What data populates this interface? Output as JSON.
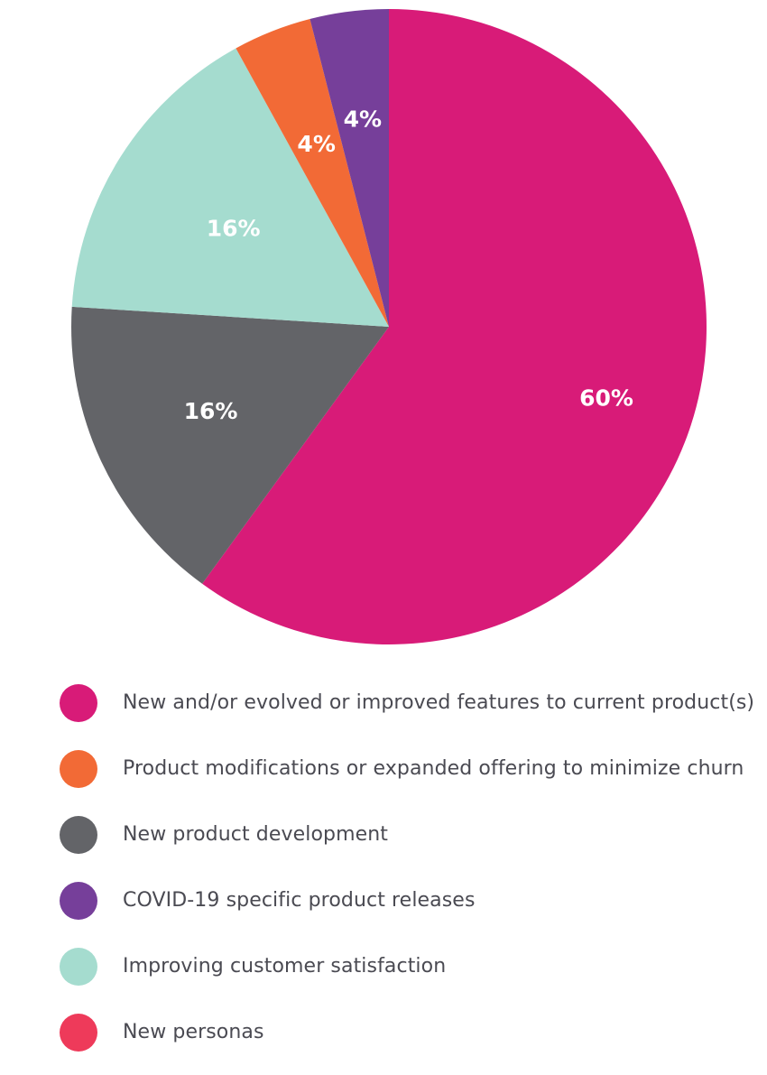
{
  "chart_data": {
    "type": "pie",
    "title": "",
    "slices": [
      {
        "label": "New and/or evolved or improved features to current product(s)",
        "value": 60,
        "display": "60%",
        "color": "#d81b78"
      },
      {
        "label": "New product development",
        "value": 16,
        "display": "16%",
        "color": "#636468"
      },
      {
        "label": "Improving customer satisfaction",
        "value": 16,
        "display": "16%",
        "color": "#a5dccf"
      },
      {
        "label": "Product modifications or expanded offering to minimize churn",
        "value": 4,
        "display": "4%",
        "color": "#f26a36"
      },
      {
        "label": "COVID-19 specific product releases",
        "value": 4,
        "display": "4%",
        "color": "#763f9a"
      },
      {
        "label": "New personas",
        "value": 0,
        "display": "",
        "color": "#ee3a5a"
      }
    ],
    "legend_position": "bottom",
    "legend": [
      {
        "label": "New and/or evolved or improved features to current product(s)",
        "color": "#d81b78"
      },
      {
        "label": "Product modifications or expanded offering to minimize churn",
        "color": "#f26a36"
      },
      {
        "label": "New product development",
        "color": "#636468"
      },
      {
        "label": "COVID-19 specific product releases",
        "color": "#763f9a"
      },
      {
        "label": "Improving customer satisfaction",
        "color": "#a5dccf"
      },
      {
        "label": "New personas",
        "color": "#ee3a5a"
      }
    ]
  }
}
